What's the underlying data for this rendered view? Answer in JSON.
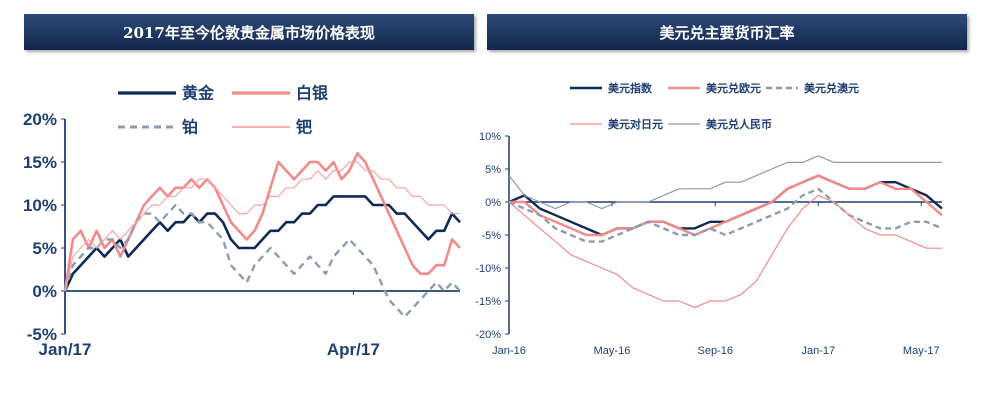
{
  "left_header": "2017年至今伦敦贵金属市场价格表现",
  "right_header": "美元兑主要货币汇率",
  "chart_data": [
    {
      "type": "line",
      "title": "2017年至今伦敦贵金属市场价格表现",
      "ylim": [
        -5,
        20
      ],
      "y_ticks": [
        "20%",
        "15%",
        "10%",
        "5%",
        "0%",
        "-5%"
      ],
      "y_tick_values": [
        20,
        15,
        10,
        5,
        0,
        -5
      ],
      "x_ticks": [
        "Jan/17",
        "Apr/17"
      ],
      "x_tick_positions": [
        0,
        73
      ],
      "xlim": [
        0,
        100
      ],
      "legend": [
        "黄金",
        "白银",
        "铂",
        "钯"
      ],
      "series": [
        {
          "name": "黄金",
          "color": "#0f2a55",
          "width": 2.6,
          "dash": "",
          "x": [
            0,
            2,
            4,
            6,
            8,
            10,
            12,
            14,
            16,
            18,
            20,
            22,
            24,
            26,
            28,
            30,
            32,
            34,
            36,
            38,
            40,
            42,
            44,
            46,
            48,
            50,
            52,
            54,
            56,
            58,
            60,
            62,
            64,
            66,
            68,
            70,
            72,
            74,
            76,
            78,
            80,
            82,
            84,
            86,
            88,
            90,
            92,
            94,
            96,
            98,
            100
          ],
          "values": [
            0,
            2,
            3,
            4,
            5,
            4,
            5,
            6,
            4,
            5,
            6,
            7,
            8,
            7,
            8,
            8,
            9,
            8,
            9,
            9,
            8,
            6,
            5,
            5,
            5,
            6,
            7,
            7,
            8,
            8,
            9,
            9,
            10,
            10,
            11,
            11,
            11,
            11,
            11,
            10,
            10,
            10,
            9,
            9,
            8,
            7,
            6,
            7,
            7,
            9,
            8
          ]
        },
        {
          "name": "白银",
          "color": "#f28a8a",
          "width": 2.6,
          "dash": "",
          "x": [
            0,
            2,
            4,
            6,
            8,
            10,
            12,
            14,
            16,
            18,
            20,
            22,
            24,
            26,
            28,
            30,
            32,
            34,
            36,
            38,
            40,
            42,
            44,
            46,
            48,
            50,
            52,
            54,
            56,
            58,
            60,
            62,
            64,
            66,
            68,
            70,
            72,
            74,
            76,
            78,
            80,
            82,
            84,
            86,
            88,
            90,
            92,
            94,
            96,
            98,
            100
          ],
          "values": [
            0,
            6,
            7,
            5,
            7,
            5,
            6,
            4,
            6,
            8,
            10,
            11,
            12,
            11,
            12,
            12,
            13,
            12,
            13,
            12,
            10,
            8,
            7,
            6,
            7,
            9,
            12,
            15,
            14,
            13,
            14,
            15,
            15,
            14,
            15,
            13,
            14,
            16,
            15,
            13,
            11,
            9,
            7,
            5,
            3,
            2,
            2,
            3,
            3,
            6,
            5
          ]
        },
        {
          "name": "铂",
          "color": "#8c9bb0",
          "width": 2.4,
          "dash": "7,5",
          "x": [
            0,
            2,
            4,
            6,
            8,
            10,
            12,
            14,
            16,
            18,
            20,
            22,
            24,
            26,
            28,
            30,
            32,
            34,
            36,
            38,
            40,
            42,
            44,
            46,
            48,
            50,
            52,
            54,
            56,
            58,
            60,
            62,
            64,
            66,
            68,
            70,
            72,
            74,
            76,
            78,
            80,
            82,
            84,
            86,
            88,
            90,
            92,
            94,
            96,
            98,
            100
          ],
          "values": [
            0,
            3,
            4,
            5,
            5,
            6,
            6,
            5,
            6,
            8,
            9,
            9,
            8,
            9,
            10,
            9,
            9,
            8,
            8,
            7,
            6,
            3,
            2,
            1,
            3,
            4,
            5,
            4,
            3,
            2,
            3,
            4,
            3,
            2,
            4,
            5,
            6,
            5,
            4,
            3,
            1,
            -1,
            -2,
            -3,
            -2,
            -1,
            0,
            1,
            0,
            1,
            0
          ]
        },
        {
          "name": "钯",
          "color": "#f4a6a6",
          "width": 1.2,
          "dash": "",
          "x": [
            0,
            2,
            4,
            6,
            8,
            10,
            12,
            14,
            16,
            18,
            20,
            22,
            24,
            26,
            28,
            30,
            32,
            34,
            36,
            38,
            40,
            42,
            44,
            46,
            48,
            50,
            52,
            54,
            56,
            58,
            60,
            62,
            64,
            66,
            68,
            70,
            72,
            74,
            76,
            78,
            80,
            82,
            84,
            86,
            88,
            90,
            92,
            94,
            96,
            98,
            100
          ],
          "values": [
            0,
            4,
            5,
            6,
            5,
            6,
            7,
            6,
            7,
            8,
            9,
            10,
            10,
            11,
            11,
            12,
            12,
            13,
            13,
            12,
            11,
            10,
            9,
            9,
            10,
            10,
            11,
            11,
            12,
            12,
            13,
            13,
            14,
            13,
            14,
            14,
            15,
            15,
            14,
            14,
            13,
            13,
            12,
            12,
            11,
            11,
            10,
            10,
            10,
            9,
            9
          ]
        }
      ]
    },
    {
      "type": "line",
      "title": "美元兑主要货币汇率",
      "ylim": [
        -20,
        10
      ],
      "y_ticks": [
        "10%",
        "5%",
        "0%",
        "-5%",
        "-10%",
        "-15%",
        "-20%"
      ],
      "y_tick_values": [
        10,
        5,
        0,
        -5,
        -10,
        -15,
        -20
      ],
      "x_ticks": [
        "Jan-16",
        "May-16",
        "Sep-16",
        "Jan-17",
        "May-17"
      ],
      "x_tick_positions": [
        0,
        33.3,
        66.7,
        100,
        133.3
      ],
      "xlim": [
        0,
        140
      ],
      "legend": [
        "美元指数",
        "美元兑欧元",
        "美元兑澳元",
        "美元对日元",
        "美元兑人民币"
      ],
      "series": [
        {
          "name": "美元指数",
          "color": "#0f2a55",
          "width": 2.4,
          "dash": "",
          "x": [
            0,
            5,
            10,
            15,
            20,
            25,
            30,
            35,
            40,
            45,
            50,
            55,
            60,
            65,
            70,
            75,
            80,
            85,
            90,
            95,
            100,
            105,
            110,
            115,
            120,
            125,
            130,
            135,
            140
          ],
          "values": [
            0,
            1,
            -1,
            -2,
            -3,
            -4,
            -5,
            -4,
            -4,
            -3,
            -3,
            -4,
            -4,
            -3,
            -3,
            -2,
            -1,
            0,
            2,
            3,
            4,
            3,
            2,
            2,
            3,
            3,
            2,
            1,
            -1
          ]
        },
        {
          "name": "美元兑欧元",
          "color": "#f28a8a",
          "width": 2.4,
          "dash": "",
          "x": [
            0,
            5,
            10,
            15,
            20,
            25,
            30,
            35,
            40,
            45,
            50,
            55,
            60,
            65,
            70,
            75,
            80,
            85,
            90,
            95,
            100,
            105,
            110,
            115,
            120,
            125,
            130,
            135,
            140
          ],
          "values": [
            0,
            0,
            -2,
            -3,
            -4,
            -5,
            -5,
            -4,
            -4,
            -3,
            -3,
            -4,
            -5,
            -4,
            -3,
            -2,
            -1,
            0,
            2,
            3,
            4,
            3,
            2,
            2,
            3,
            2,
            2,
            0,
            -2
          ]
        },
        {
          "name": "美元兑澳元",
          "color": "#8c9bb0",
          "width": 2.4,
          "dash": "6,4",
          "x": [
            0,
            5,
            10,
            15,
            20,
            25,
            30,
            35,
            40,
            45,
            50,
            55,
            60,
            65,
            70,
            75,
            80,
            85,
            90,
            95,
            100,
            105,
            110,
            115,
            120,
            125,
            130,
            135,
            140
          ],
          "values": [
            0,
            -1,
            -2,
            -4,
            -5,
            -6,
            -6,
            -5,
            -4,
            -3,
            -4,
            -5,
            -5,
            -4,
            -5,
            -4,
            -3,
            -2,
            -1,
            1,
            2,
            0,
            -2,
            -3,
            -4,
            -4,
            -3,
            -3,
            -4
          ]
        },
        {
          "name": "美元对日元",
          "color": "#f28a8a",
          "width": 1.2,
          "dash": "",
          "x": [
            0,
            5,
            10,
            15,
            20,
            25,
            30,
            35,
            40,
            45,
            50,
            55,
            60,
            65,
            70,
            75,
            80,
            85,
            90,
            95,
            100,
            105,
            110,
            115,
            120,
            125,
            130,
            135,
            140
          ],
          "values": [
            0,
            -2,
            -4,
            -6,
            -8,
            -9,
            -10,
            -11,
            -13,
            -14,
            -15,
            -15,
            -16,
            -15,
            -15,
            -14,
            -12,
            -8,
            -4,
            -1,
            1,
            0,
            -2,
            -4,
            -5,
            -5,
            -6,
            -7,
            -7
          ]
        },
        {
          "name": "美元兑人民币",
          "color": "#8c9bb0",
          "width": 1.2,
          "dash": "",
          "x": [
            0,
            5,
            10,
            15,
            20,
            25,
            30,
            35,
            40,
            45,
            50,
            55,
            60,
            65,
            70,
            75,
            80,
            85,
            90,
            95,
            100,
            105,
            110,
            115,
            120,
            125,
            130,
            135,
            140
          ],
          "values": [
            4,
            1,
            0,
            -1,
            0,
            0,
            -1,
            0,
            0,
            0,
            1,
            2,
            2,
            2,
            3,
            3,
            4,
            5,
            6,
            6,
            7,
            6,
            6,
            6,
            6,
            6,
            6,
            6,
            6
          ]
        }
      ]
    }
  ]
}
